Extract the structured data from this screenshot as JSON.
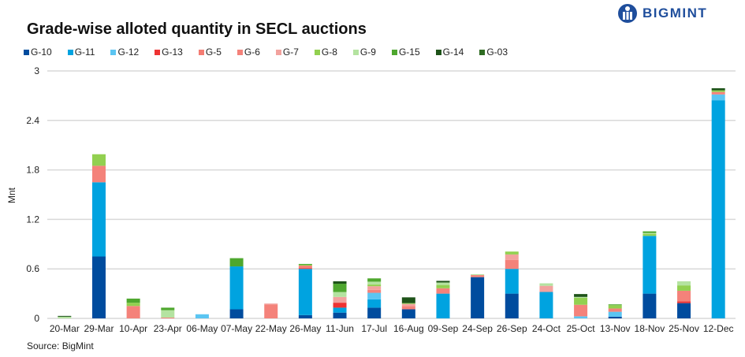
{
  "title": "Grade-wise alloted quantity in SECL auctions",
  "logo": "BIGMINT",
  "source": "Source: BigMint",
  "chart_data": {
    "type": "bar",
    "stacked": true,
    "title": "Grade-wise alloted quantity in SECL auctions",
    "xlabel": "",
    "ylabel": "Mnt",
    "ylim": [
      0,
      3
    ],
    "yticks": [
      "0",
      "0.6",
      "1.2",
      "1.8",
      "2.4",
      "3"
    ],
    "grid": true,
    "legend": "top",
    "categories": [
      "20-Mar",
      "29-Mar",
      "10-Apr",
      "23-Apr",
      "06-May",
      "07-May",
      "22-May",
      "26-May",
      "11-Jun",
      "17-Jul",
      "16-Aug",
      "09-Sep",
      "24-Sep",
      "26-Sep",
      "24-Oct",
      "25-Oct",
      "13-Nov",
      "18-Nov",
      "25-Nov",
      "12-Dec"
    ],
    "series": [
      {
        "name": "G-10",
        "color": "#004C9E",
        "values": [
          0,
          0.75,
          0,
          0,
          0,
          0.11,
          0,
          0.04,
          0.07,
          0.13,
          0.11,
          0,
          0.5,
          0.3,
          0,
          0,
          0.02,
          0.3,
          0.185,
          0
        ]
      },
      {
        "name": "G-11",
        "color": "#00A3E0",
        "values": [
          0,
          0.9,
          0,
          0,
          0,
          0.52,
          0,
          0.56,
          0.06,
          0.1,
          0,
          0.3,
          0,
          0.3,
          0.32,
          0,
          0,
          0.7,
          0,
          2.645
        ]
      },
      {
        "name": "G-12",
        "color": "#5BC5F2",
        "values": [
          0,
          0,
          0,
          0,
          0.05,
          0,
          0,
          0,
          0,
          0.08,
          0,
          0,
          0,
          0,
          0,
          0.025,
          0.06,
          0,
          0,
          0.07
        ]
      },
      {
        "name": "G-13",
        "color": "#EE3333",
        "values": [
          0,
          0,
          0,
          0,
          0,
          0,
          0,
          0.01,
          0.06,
          0,
          0,
          0,
          0,
          0,
          0,
          0,
          0,
          0,
          0.02,
          0
        ]
      },
      {
        "name": "G-5",
        "color": "#F47C73",
        "values": [
          0,
          0,
          0,
          0,
          0,
          0,
          0,
          0,
          0,
          0,
          0,
          0,
          0,
          0,
          0,
          0,
          0,
          0,
          0,
          0
        ]
      },
      {
        "name": "G-6",
        "color": "#F4827A",
        "values": [
          0,
          0.2,
          0.15,
          0.01,
          0,
          0,
          0.17,
          0.03,
          0,
          0.035,
          0.04,
          0.065,
          0.025,
          0.11,
          0,
          0.14,
          0.04,
          0,
          0.13,
          0.03
        ]
      },
      {
        "name": "G-7",
        "color": "#F2A29E",
        "values": [
          0,
          0,
          0,
          0,
          0,
          0,
          0.01,
          0,
          0.07,
          0.045,
          0.025,
          0,
          0,
          0.065,
          0.075,
          0,
          0,
          0,
          0,
          0
        ]
      },
      {
        "name": "G-8",
        "color": "#92D050",
        "values": [
          0,
          0.14,
          0.04,
          0,
          0,
          0,
          0,
          0.01,
          0,
          0.02,
          0.01,
          0.04,
          0,
          0.035,
          0,
          0.085,
          0.04,
          0.025,
          0.065,
          0.02
        ]
      },
      {
        "name": "G-9",
        "color": "#B4E3A0",
        "values": [
          0.02,
          0,
          0,
          0.09,
          0,
          0,
          0,
          0,
          0.06,
          0.035,
          0,
          0.03,
          0.01,
          0,
          0.03,
          0.01,
          0,
          0.01,
          0.05,
          0
        ]
      },
      {
        "name": "G-15",
        "color": "#4EA72E",
        "values": [
          0,
          0,
          0.05,
          0.03,
          0,
          0.1,
          0,
          0.01,
          0.1,
          0.04,
          0,
          0,
          0,
          0,
          0,
          0,
          0.01,
          0.02,
          0,
          0
        ]
      },
      {
        "name": "G-14",
        "color": "#1E5319",
        "values": [
          0.01,
          0,
          0,
          0,
          0,
          0,
          0,
          0,
          0.03,
          0,
          0.07,
          0.02,
          0,
          0,
          0,
          0.035,
          0,
          0,
          0,
          0.025
        ]
      },
      {
        "name": "G-03",
        "color": "#2E6B22",
        "values": [
          0,
          0,
          0,
          0,
          0,
          0,
          0,
          0,
          0,
          0,
          0,
          0,
          0,
          0,
          0,
          0,
          0,
          0,
          0,
          0
        ]
      }
    ]
  }
}
